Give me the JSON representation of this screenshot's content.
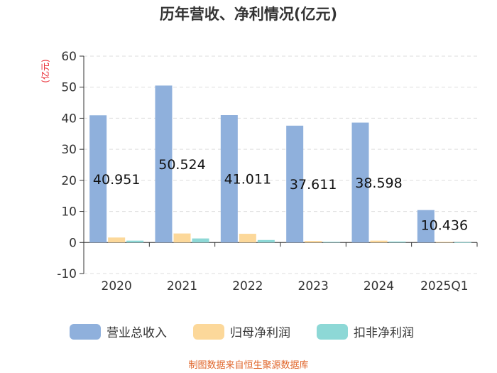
{
  "chart_data": {
    "type": "bar",
    "title": "历年营收、净利情况(亿元)",
    "ylabel": "(亿元)",
    "xlabel": "",
    "ylim": [
      -10,
      60
    ],
    "yticks": [
      60,
      50,
      40,
      30,
      20,
      10,
      0,
      -10
    ],
    "grid": true,
    "legend_position": "bottom",
    "categories": [
      "2020",
      "2021",
      "2022",
      "2023",
      "2024",
      "2025Q1"
    ],
    "series": [
      {
        "name": "营业总收入",
        "color": "#8fb0dc",
        "values": [
          40.951,
          50.524,
          41.011,
          37.611,
          38.598,
          10.436
        ],
        "labels": [
          "40.951",
          "50.524",
          "41.011",
          "37.611",
          "38.598",
          "10.436"
        ]
      },
      {
        "name": "归母净利润",
        "color": "#fcd89a",
        "values": [
          1.6,
          2.9,
          2.8,
          0.5,
          0.6,
          0.2
        ]
      },
      {
        "name": "扣非净利润",
        "color": "#8dd8d6",
        "values": [
          0.6,
          1.3,
          0.8,
          0.2,
          0.3,
          0.1
        ]
      }
    ]
  },
  "footer": {
    "source": "制图数据来自恒生聚源数据库"
  }
}
